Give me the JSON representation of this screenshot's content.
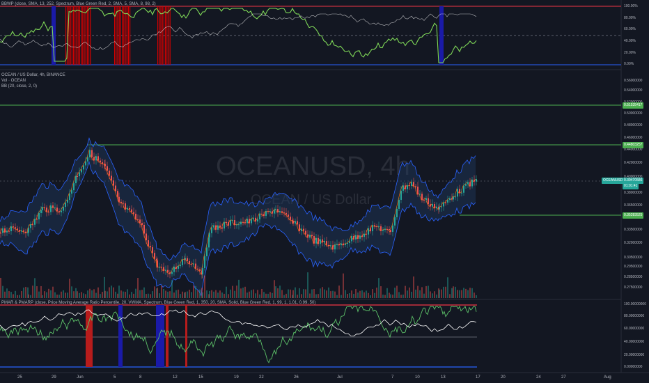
{
  "top_indicator": {
    "legend": "BBWP (close, SMA, 13, 252, Spectrum, Blue Green Red, 2, SMA, 5, SMA, 8, 98, 2)",
    "ticks": [
      "100.00%",
      "80.00%",
      "60.00%",
      "40.00%",
      "20.00%",
      "0.00%"
    ]
  },
  "main_chart": {
    "symbol_line": "OCEAN / US Dollar, 4h, BINANCE",
    "vol_line": "Vol · OCEAN",
    "bb_line": "BB (20, close, 2, 0)",
    "watermark_symbol": "OCEANUSD, 4h",
    "watermark_name": "OCEAN / US Dollar",
    "ticks": [
      "0.56000000",
      "0.54000000",
      "0.52000000",
      "0.50000000",
      "0.48000000",
      "0.46000000",
      "0.44000000",
      "0.42000000",
      "0.40000000",
      "0.38000000",
      "0.36500000",
      "0.35000000",
      "0.33500000",
      "0.32000000",
      "0.30500000",
      "0.29500000",
      "0.28500000",
      "0.27500000"
    ],
    "price_tags": [
      {
        "label": "0.51535417",
        "color": "#4caf50"
      },
      {
        "label": "0.44803257",
        "color": "#4caf50"
      },
      {
        "label": "OCEANUSD",
        "color": "#26a69a"
      },
      {
        "label": "0.39470586",
        "color": "#26a69a"
      },
      {
        "label": "01:01:41",
        "color": "#26a69a"
      },
      {
        "label": "0.35283525",
        "color": "#4caf50"
      }
    ]
  },
  "bottom_indicator": {
    "legend": "PMAR & PMARP (close, Price Moving Average Ratio Percentile, 20, VWMA, Spectrum, Blue Green Red, 1, 350, 20, SMA, Solid, Blue Green Red, 1, 99, 1, 1.01, 0.99, 50)",
    "ticks": [
      "100.00000000",
      "80.00000000",
      "60.00000000",
      "40.00000000",
      "20.00000000",
      "0.00000000"
    ]
  },
  "x_axis": [
    "25",
    "29",
    "Jun",
    "5",
    "8",
    "12",
    "15",
    "19",
    "22",
    "26",
    "Jul",
    "7",
    "10",
    "13",
    "17",
    "20",
    "24",
    "27",
    "Aug"
  ],
  "colors": {
    "background": "#131722",
    "up": "#26a69a",
    "down": "#ef5350",
    "bb_fill": "#1e3a5f",
    "hline_green": "#4caf50",
    "hline_red": "#f23645",
    "hline_blue": "#2962ff"
  }
}
